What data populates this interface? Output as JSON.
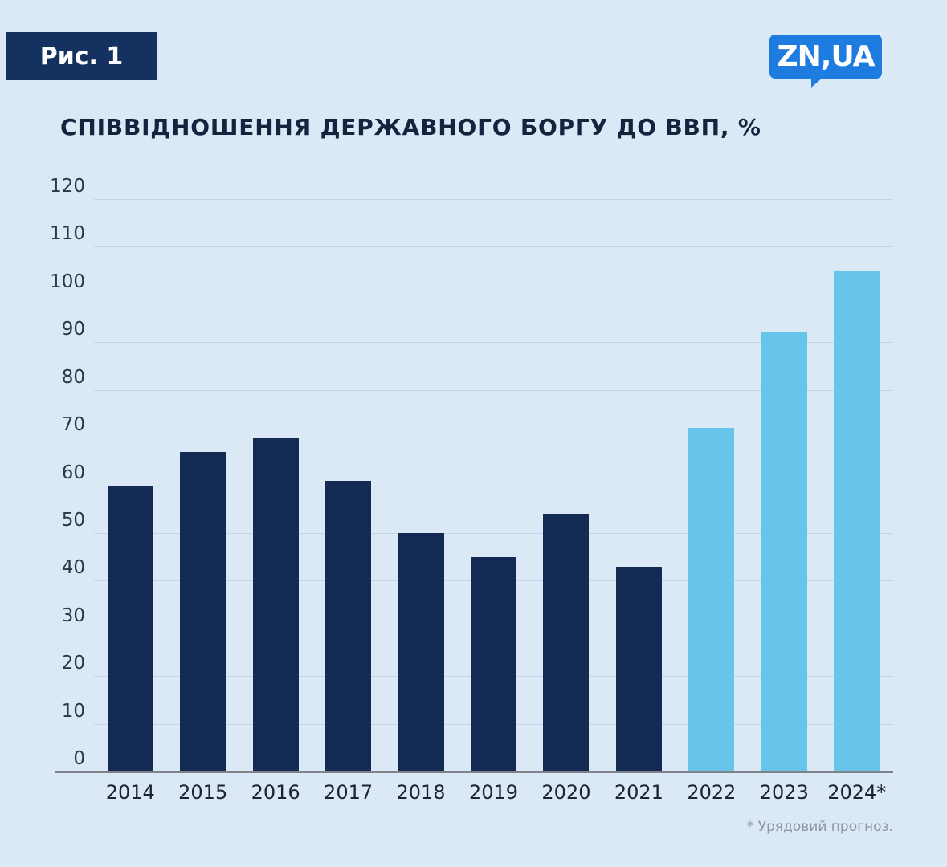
{
  "header": {
    "figure_label": "Рис. 1",
    "logo_text": "ZN,UA"
  },
  "colors": {
    "background": "#dbe9f6",
    "bar_dark": "#132b52",
    "bar_light": "#66c5e8",
    "badge_bg": "#15315f",
    "logo_bg": "#1e7be0",
    "title_text": "#15233f",
    "gridline": "#c6d5e6",
    "axis_line": "#7d828b",
    "footnote_text": "#8d96a7"
  },
  "chart_data": {
    "type": "bar",
    "title": "СПІВВІДНОШЕННЯ ДЕРЖАВНОГО БОРГУ ДО ВВП, %",
    "categories": [
      "2014",
      "2015",
      "2016",
      "2017",
      "2018",
      "2019",
      "2020",
      "2021",
      "2022",
      "2023",
      "2024*"
    ],
    "values": [
      60,
      67,
      70,
      61,
      50,
      45,
      54,
      43,
      72,
      92,
      105
    ],
    "bar_colors": [
      "dark",
      "dark",
      "dark",
      "dark",
      "dark",
      "dark",
      "dark",
      "dark",
      "light",
      "light",
      "light"
    ],
    "xlabel": "",
    "ylabel": "",
    "ylim": [
      0,
      120
    ],
    "ytick_step": 10,
    "grid": true,
    "legend": "none",
    "footnote": "* Урядовий прогноз."
  }
}
